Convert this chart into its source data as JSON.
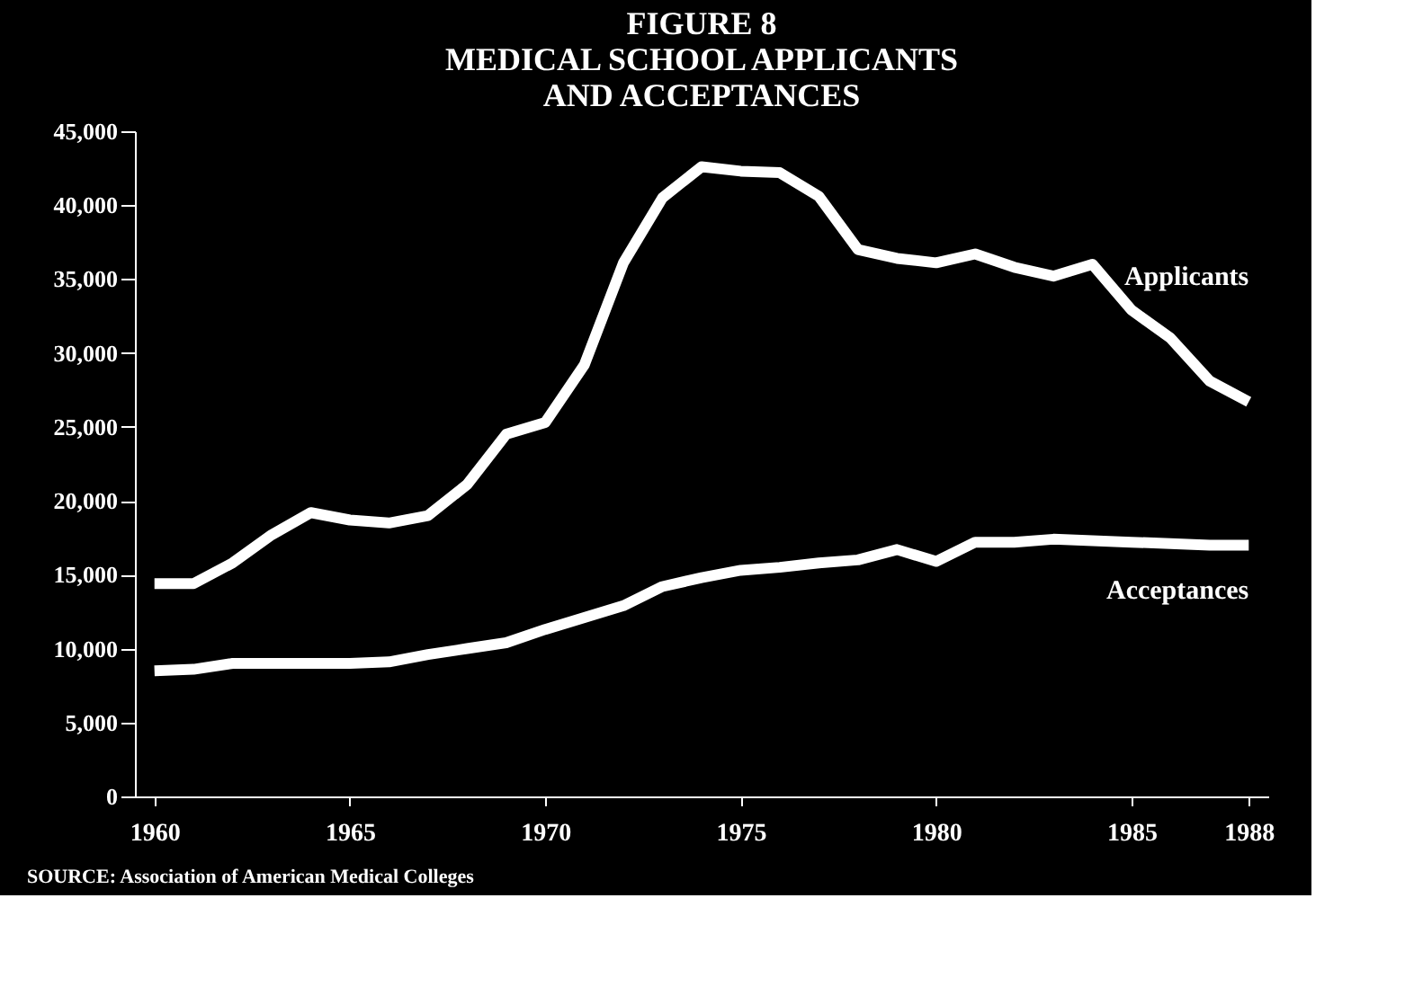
{
  "chart_data": {
    "type": "line",
    "title": [
      "FIGURE 8",
      "MEDICAL SCHOOL APPLICANTS",
      "AND ACCEPTANCES"
    ],
    "x": [
      1960,
      1961,
      1962,
      1963,
      1964,
      1965,
      1966,
      1967,
      1968,
      1969,
      1970,
      1971,
      1972,
      1973,
      1974,
      1975,
      1976,
      1977,
      1978,
      1979,
      1980,
      1981,
      1982,
      1983,
      1984,
      1985,
      1986,
      1987,
      1988
    ],
    "series": [
      {
        "name": "Applicants",
        "color": "#ffffff",
        "values": [
          14400,
          14400,
          15800,
          17700,
          19200,
          18700,
          18500,
          19000,
          21100,
          24500,
          25300,
          29200,
          36100,
          40500,
          42600,
          42300,
          42200,
          40600,
          37000,
          36400,
          36100,
          36700,
          35800,
          35200,
          36000,
          32900,
          31000,
          28100,
          26700
        ]
      },
      {
        "name": "Acceptances",
        "color": "#ffffff",
        "values": [
          8500,
          8600,
          9000,
          9000,
          9000,
          9000,
          9100,
          9600,
          10000,
          10400,
          11300,
          12100,
          12900,
          14200,
          14800,
          15300,
          15500,
          15800,
          16000,
          16700,
          15900,
          17200,
          17200,
          17400,
          17300,
          17200,
          17100,
          17000,
          17000
        ]
      }
    ],
    "xlim": [
      1959.5,
      1988.5
    ],
    "xticks": [
      1960,
      1965,
      1970,
      1975,
      1980,
      1985,
      1988
    ],
    "ylim": [
      0,
      45000
    ],
    "yticks": [
      0,
      {
        "value": 5000,
        "label": "5,000"
      },
      {
        "value": 10000,
        "label": "10,000"
      },
      {
        "value": 15000,
        "label": "15,000"
      },
      {
        "value": 20000,
        "label": "20,000"
      },
      {
        "value": 25000,
        "label": "25,000"
      },
      {
        "value": 30000,
        "label": "30,000"
      },
      {
        "value": 35000,
        "label": "35,000"
      },
      {
        "value": 40000,
        "label": "40,000"
      },
      {
        "value": 45000,
        "label": "45,000"
      }
    ],
    "grid": false,
    "legend": false,
    "marker": "none",
    "line_style": "solid",
    "annotations": [
      "SOURCE: Association of American Medical Colleges"
    ]
  }
}
